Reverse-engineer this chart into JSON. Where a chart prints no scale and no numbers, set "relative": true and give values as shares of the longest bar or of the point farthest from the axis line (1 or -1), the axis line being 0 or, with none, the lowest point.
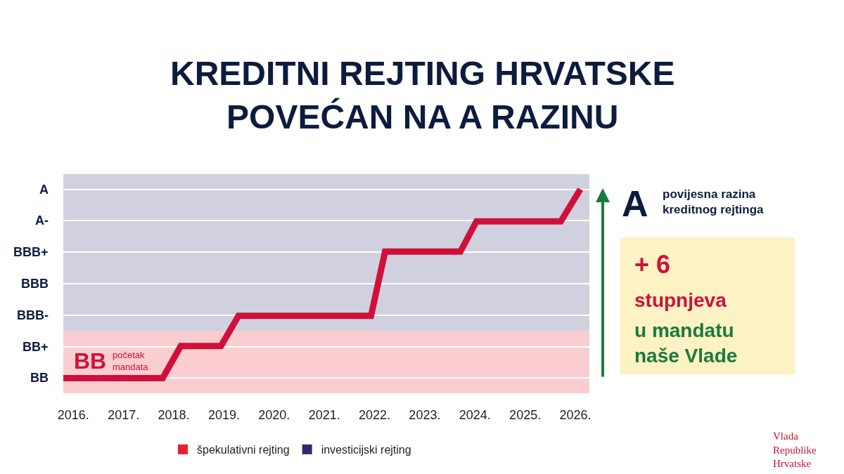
{
  "chart_data": {
    "type": "line",
    "title": "KREDITNI REJTING HRVATSKE\nPOVEĆAN NA A RAZINU",
    "relative": true,
    "x": [
      2015.8,
      2017.78,
      2018.14,
      2018.94,
      2019.29,
      2021.93,
      2022.21,
      2023.71,
      2024.03,
      2025.71,
      2026.1
    ],
    "series": [
      {
        "color": "#d0103a",
        "values": [
          0,
          0,
          0.17,
          0.17,
          0.33,
          0.33,
          0.67,
          0.67,
          0.83,
          0.83,
          1
        ]
      }
    ],
    "xlim": [
      2015.8,
      2026.28
    ],
    "xticks": [
      {
        "value": 2016,
        "label": "2016."
      },
      {
        "value": 2017,
        "label": "2017."
      },
      {
        "value": 2018,
        "label": "2018."
      },
      {
        "value": 2019,
        "label": "2019."
      },
      {
        "value": 2020,
        "label": "2020."
      },
      {
        "value": 2021,
        "label": "2021."
      },
      {
        "value": 2022,
        "label": "2022."
      },
      {
        "value": 2023,
        "label": "2023."
      },
      {
        "value": 2024,
        "label": "2024."
      },
      {
        "value": 2025,
        "label": "2025."
      },
      {
        "value": 2026,
        "label": "2026."
      }
    ],
    "bands": [
      {
        "axis": "y",
        "from": -0.08,
        "to": 0.25,
        "label": "špekulativni rejting",
        "color": "#e8202a"
      },
      {
        "axis": "y",
        "from": 0.25,
        "to": 1.08,
        "label": "investicijski rejting",
        "color": "#2e2a6e"
      }
    ],
    "annotations": [
      "BB",
      "BB+",
      "BBB-",
      "BBB",
      "BBB+",
      "A-",
      "A",
      "BB",
      "početak\nmandata",
      "A",
      "povijesna razina\nkreditnog rejtinga",
      "+ 6",
      "stupnjeva",
      "u mandatu\nnaše Vlade",
      "Vlada\nRepublike\nHrvatske"
    ],
    "grid": "y",
    "legend": "bottom",
    "line_style": "solid",
    "marker": "none"
  }
}
